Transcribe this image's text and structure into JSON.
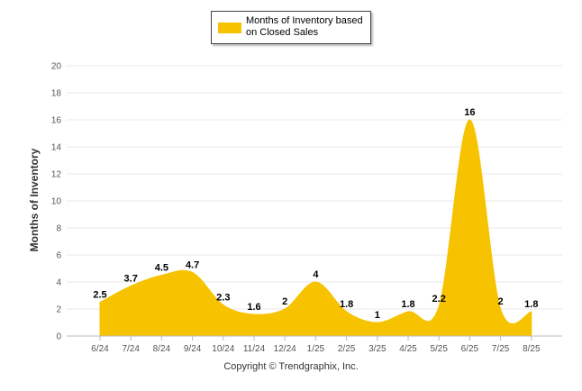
{
  "chart_data": {
    "type": "area",
    "categories": [
      "6/24",
      "7/24",
      "8/24",
      "9/24",
      "10/24",
      "11/24",
      "12/24",
      "1/25",
      "2/25",
      "3/25",
      "4/25",
      "5/25",
      "6/25",
      "7/25",
      "8/25"
    ],
    "series": [
      {
        "name": "Months of Inventory based on Closed Sales",
        "values": [
          2.5,
          3.7,
          4.5,
          4.7,
          2.3,
          1.6,
          2,
          4,
          1.8,
          1,
          1.8,
          2.2,
          16,
          2,
          1.8
        ],
        "color": "#f7c300"
      }
    ],
    "data_labels": [
      "2.5",
      "3.7",
      "4.5",
      "4.7",
      "2.3",
      "1.6",
      "2",
      "4",
      "1.8",
      "1",
      "1.8",
      "2.2",
      "16",
      "2",
      "1.8"
    ],
    "ylabel": "Months of Inventory",
    "xlabel": "",
    "ylim": [
      0,
      20
    ],
    "yticks": [
      "0",
      "2",
      "4",
      "6",
      "8",
      "10",
      "12",
      "14",
      "16",
      "18",
      "20"
    ],
    "grid": true,
    "legend_position": "top-center"
  },
  "legend": {
    "label_line1": "Months of Inventory based",
    "label_line2": "on Closed Sales"
  },
  "footer": {
    "copyright": "Copyright © Trendgraphix, Inc."
  }
}
